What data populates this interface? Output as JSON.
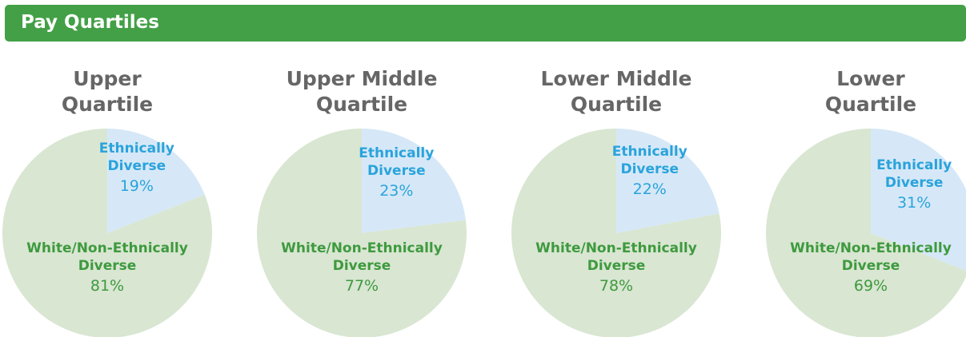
{
  "header": {
    "title": "Pay Quartiles"
  },
  "chart_data": [
    {
      "type": "pie",
      "title": "Upper\nQuartile",
      "categories": [
        "Ethnically Diverse",
        "White/Non-Ethnically Diverse"
      ],
      "values": [
        19,
        81
      ],
      "value_labels": [
        "19%",
        "81%"
      ],
      "colors": [
        "#d6e8f7",
        "#d9e6d2"
      ]
    },
    {
      "type": "pie",
      "title": "Upper Middle\nQuartile",
      "categories": [
        "Ethnically Diverse",
        "White/Non-Ethnically Diverse"
      ],
      "values": [
        23,
        77
      ],
      "value_labels": [
        "23%",
        "77%"
      ],
      "colors": [
        "#d6e8f7",
        "#d9e6d2"
      ]
    },
    {
      "type": "pie",
      "title": "Lower Middle\nQuartile",
      "categories": [
        "Ethnically Diverse",
        "White/Non-Ethnically Diverse"
      ],
      "values": [
        22,
        78
      ],
      "value_labels": [
        "22%",
        "78%"
      ],
      "colors": [
        "#d6e8f7",
        "#d9e6d2"
      ]
    },
    {
      "type": "pie",
      "title": "Lower\nQuartile",
      "categories": [
        "Ethnically Diverse",
        "White/Non-Ethnically Diverse"
      ],
      "values": [
        31,
        69
      ],
      "value_labels": [
        "31%",
        "69%"
      ],
      "colors": [
        "#d6e8f7",
        "#d9e6d2"
      ]
    }
  ]
}
